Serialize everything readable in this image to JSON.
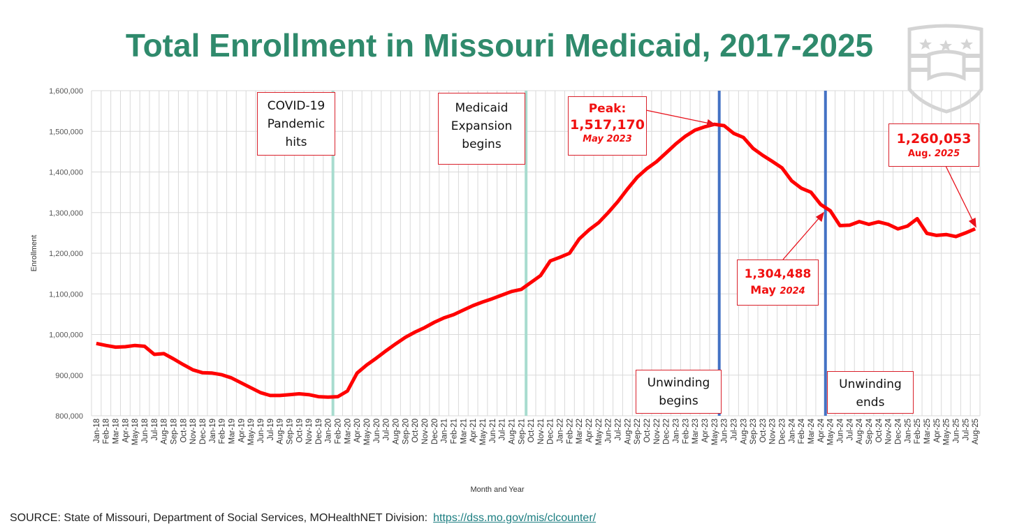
{
  "chart_data": {
    "type": "line",
    "title": "Total Enrollment in Missouri Medicaid, 2017-2025",
    "xlabel": "Month and Year",
    "ylabel": "Enrollment",
    "ylim": [
      800000,
      1600000
    ],
    "yticks": [
      800000,
      900000,
      1000000,
      1100000,
      1200000,
      1300000,
      1400000,
      1500000,
      1600000
    ],
    "ytick_labels": [
      "800,000",
      "900,000",
      "1,000,000",
      "1,100,000",
      "1,200,000",
      "1,300,000",
      "1,400,000",
      "1,500,000",
      "1,600,000"
    ],
    "grid": true,
    "line_color": "#ff0000",
    "categories": [
      "Jan-18",
      "Feb-18",
      "Mar-18",
      "Apr-18",
      "May-18",
      "Jun-18",
      "Jul-18",
      "Aug-18",
      "Sep-18",
      "Oct-18",
      "Nov-18",
      "Dec-18",
      "Jan-19",
      "Feb-19",
      "Mar-19",
      "Apr-19",
      "May-19",
      "Jun-19",
      "Jul-19",
      "Aug-19",
      "Sep-19",
      "Oct-19",
      "Nov-19",
      "Dec-19",
      "Jan-20",
      "Feb-20",
      "Mar-20",
      "Apr-20",
      "May-20",
      "Jun-20",
      "Jul-20",
      "Aug-20",
      "Sep-20",
      "Oct-20",
      "Nov-20",
      "Dec-20",
      "Jan-21",
      "Feb-21",
      "Mar-21",
      "Apr-21",
      "May-21",
      "Jun-21",
      "Jul-21",
      "Aug-21",
      "Sep-21",
      "Oct-21",
      "Nov-21",
      "Dec-21",
      "Jan-22",
      "Feb-22",
      "Mar-22",
      "Apr-22",
      "May-22",
      "Jun-22",
      "Jul-22",
      "Aug-22",
      "Sep-22",
      "Oct-22",
      "Nov-22",
      "Dec-22",
      "Jan-23",
      "Feb-23",
      "Mar-23",
      "Apr-23",
      "May-23",
      "Jun-23",
      "Jul-23",
      "Aug-23",
      "Sep-23",
      "Oct-23",
      "Nov-23",
      "Dec-23",
      "Jan-24",
      "Feb-24",
      "Mar-24",
      "Apr-24",
      "May-24",
      "Jun-24",
      "Jul-24",
      "Aug-24",
      "Sep-24",
      "Oct-24",
      "Nov-24",
      "Dec-24",
      "Jan-25",
      "Feb-25",
      "Mar-25",
      "Apr-25",
      "May-25",
      "Jun-25",
      "Jul-25",
      "Aug-25"
    ],
    "series": [
      {
        "name": "Enrollment",
        "values": [
          978000,
          973000,
          969000,
          970000,
          973000,
          971000,
          951000,
          953000,
          940000,
          926000,
          913000,
          906000,
          905000,
          901000,
          893000,
          881000,
          869000,
          857000,
          850000,
          850000,
          852000,
          854000,
          852000,
          847000,
          846000,
          847000,
          861000,
          905000,
          925000,
          942000,
          960000,
          977000,
          993000,
          1006000,
          1017000,
          1030000,
          1041000,
          1049000,
          1060000,
          1071000,
          1080000,
          1088000,
          1097000,
          1106000,
          1111000,
          1128000,
          1145000,
          1181000,
          1190000,
          1200000,
          1235000,
          1257000,
          1275000,
          1300000,
          1327000,
          1358000,
          1387000,
          1408000,
          1425000,
          1447000,
          1469000,
          1488000,
          1503000,
          1511000,
          1517170,
          1514000,
          1495000,
          1485000,
          1458000,
          1441000,
          1426000,
          1410000,
          1378000,
          1360000,
          1350000,
          1320000,
          1304488,
          1268000,
          1269000,
          1278000,
          1271000,
          1277000,
          1271000,
          1260000,
          1267000,
          1285000,
          1249000,
          1244000,
          1246000,
          1241000,
          1250000,
          1260053
        ]
      }
    ],
    "event_lines": [
      {
        "after": "Jan-20",
        "color": "#a8dccf"
      },
      {
        "after": "Sep-21",
        "color": "#a8dccf"
      },
      {
        "after": "May-23",
        "color": "#4472c4"
      },
      {
        "after": "Apr-24",
        "color": "#4472c4"
      }
    ],
    "annotations": {
      "covid": [
        "COVID-19",
        "Pandemic",
        "hits"
      ],
      "expansion": [
        "Medicaid",
        "Expansion",
        "begins"
      ],
      "peak": {
        "label": "Peak:",
        "value": "1,517,170",
        "date": "May 2023"
      },
      "may2024": {
        "value": "1,304,488",
        "month": "May",
        "year": "2024"
      },
      "aug2025": {
        "value": "1,260,053",
        "month": "Aug.",
        "year": "2025"
      },
      "unwinding_begins": [
        "Unwinding",
        "begins"
      ],
      "unwinding_ends": [
        "Unwinding",
        "ends"
      ]
    }
  },
  "source": {
    "text": "SOURCE: State of Missouri, Department of Social Services, MOHealthNET Division:",
    "link": "https://dss.mo.gov/mis/clcounter/"
  }
}
